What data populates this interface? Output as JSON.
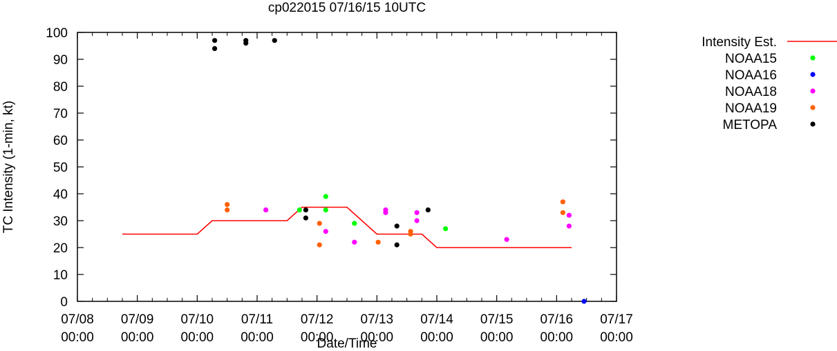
{
  "chart_data": {
    "type": "scatter",
    "title": "cp022015 07/16/15 10UTC",
    "xlabel": "Date/Time",
    "ylabel": "TC Intensity (1-min, kt)",
    "xlim": [
      "07/08 00:00",
      "07/17 00:00"
    ],
    "ylim": [
      0,
      100
    ],
    "y_ticks": [
      0,
      10,
      20,
      30,
      40,
      50,
      60,
      70,
      80,
      90,
      100
    ],
    "x_ticks": [
      {
        "date": "07/08",
        "time": "00:00"
      },
      {
        "date": "07/09",
        "time": "00:00"
      },
      {
        "date": "07/10",
        "time": "00:00"
      },
      {
        "date": "07/11",
        "time": "00:00"
      },
      {
        "date": "07/12",
        "time": "00:00"
      },
      {
        "date": "07/13",
        "time": "00:00"
      },
      {
        "date": "07/14",
        "time": "00:00"
      },
      {
        "date": "07/15",
        "time": "00:00"
      },
      {
        "date": "07/16",
        "time": "00:00"
      },
      {
        "date": "07/17",
        "time": "00:00"
      }
    ],
    "grid": false,
    "legend_position": "outside-right",
    "series": [
      {
        "name": "Intensity Est.",
        "kind": "line",
        "color": "#ff0000",
        "points": [
          [
            "07/08 18:00",
            25
          ],
          [
            "07/10 00:00",
            25
          ],
          [
            "07/10 06:00",
            30
          ],
          [
            "07/11 12:00",
            30
          ],
          [
            "07/11 18:00",
            35
          ],
          [
            "07/12 12:00",
            35
          ],
          [
            "07/13 00:00",
            25
          ],
          [
            "07/13 18:00",
            25
          ],
          [
            "07/14 00:00",
            20
          ],
          [
            "07/16 06:00",
            20
          ]
        ]
      },
      {
        "name": "NOAA15",
        "kind": "points",
        "color": "#00ff00",
        "points": [
          [
            "07/11 17:00",
            34
          ],
          [
            "07/12 03:30",
            39
          ],
          [
            "07/12 03:30",
            34
          ],
          [
            "07/12 15:00",
            29
          ],
          [
            "07/14 03:30",
            27
          ]
        ]
      },
      {
        "name": "NOAA16",
        "kind": "points",
        "color": "#0000ff",
        "points": [
          [
            "07/16 11:00",
            0
          ]
        ]
      },
      {
        "name": "NOAA18",
        "kind": "points",
        "color": "#ff00ff",
        "points": [
          [
            "07/11 03:30",
            34
          ],
          [
            "07/12 03:30",
            26
          ],
          [
            "07/12 15:00",
            22
          ],
          [
            "07/13 03:30",
            34
          ],
          [
            "07/13 03:30",
            33
          ],
          [
            "07/13 16:00",
            33
          ],
          [
            "07/13 16:00",
            30
          ],
          [
            "07/15 04:00",
            23
          ],
          [
            "07/16 05:00",
            32
          ],
          [
            "07/16 05:00",
            28
          ]
        ]
      },
      {
        "name": "NOAA19",
        "kind": "points",
        "color": "#ff6000",
        "points": [
          [
            "07/10 12:00",
            36
          ],
          [
            "07/10 12:00",
            34
          ],
          [
            "07/12 01:00",
            29
          ],
          [
            "07/12 01:00",
            21
          ],
          [
            "07/13 00:30",
            22
          ],
          [
            "07/13 13:30",
            26
          ],
          [
            "07/13 13:30",
            25
          ],
          [
            "07/16 02:30",
            37
          ],
          [
            "07/16 02:30",
            33
          ]
        ]
      },
      {
        "name": "METOPA",
        "kind": "points",
        "color": "#000000",
        "points": [
          [
            "07/10 07:00",
            97
          ],
          [
            "07/10 07:00",
            94
          ],
          [
            "07/10 19:30",
            97
          ],
          [
            "07/10 19:30",
            96
          ],
          [
            "07/11 07:00",
            97
          ],
          [
            "07/11 19:30",
            34
          ],
          [
            "07/11 19:30",
            31
          ],
          [
            "07/13 08:00",
            28
          ],
          [
            "07/13 08:00",
            21
          ],
          [
            "07/13 20:30",
            34
          ]
        ]
      }
    ]
  }
}
